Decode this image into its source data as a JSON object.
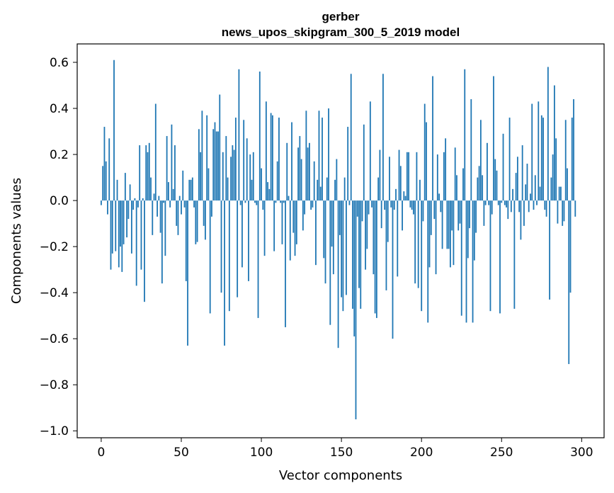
{
  "chart_data": {
    "type": "bar",
    "title": "gerber",
    "subtitle": "news_upos_skipgram_300_5_2019 model",
    "xlabel": "Vector components",
    "ylabel": "Components values",
    "xlim": [
      -15,
      314
    ],
    "ylim": [
      -1.03,
      0.68
    ],
    "xticks": [
      0,
      50,
      100,
      150,
      200,
      250,
      300
    ],
    "yticks": [
      0.6,
      0.4,
      0.2,
      0.0,
      -0.2,
      -0.4,
      -0.6,
      -0.8,
      -1.0
    ],
    "ytick_labels": [
      "0.6",
      "0.4",
      "0.2",
      "0.0",
      "−0.2",
      "−0.4",
      "−0.6",
      "−0.8",
      "−1.0"
    ],
    "bar_color": "#1f77b4",
    "grid": false,
    "values": [
      -0.02,
      0.15,
      0.32,
      0.17,
      -0.06,
      0.27,
      -0.3,
      -0.23,
      0.61,
      -0.22,
      0.09,
      -0.29,
      -0.2,
      -0.31,
      -0.19,
      0.12,
      -0.16,
      -0.08,
      0.07,
      -0.23,
      -0.04,
      0.01,
      -0.37,
      -0.03,
      0.24,
      -0.3,
      0.01,
      -0.44,
      0.24,
      0.21,
      0.25,
      0.1,
      -0.15,
      0.03,
      0.42,
      -0.07,
      0.02,
      -0.14,
      -0.36,
      -0.01,
      -0.24,
      0.28,
      0.08,
      -0.03,
      0.33,
      0.05,
      0.24,
      -0.11,
      -0.15,
      0.02,
      -0.06,
      0.13,
      -0.03,
      -0.35,
      -0.63,
      0.09,
      0.09,
      0.1,
      -0.03,
      -0.19,
      -0.18,
      0.31,
      0.21,
      0.39,
      -0.11,
      -0.17,
      0.37,
      0.14,
      -0.49,
      -0.07,
      0.31,
      0.34,
      0.3,
      0.3,
      0.46,
      -0.4,
      0.21,
      -0.63,
      0.28,
      0.1,
      -0.48,
      0.19,
      0.24,
      0.22,
      0.36,
      -0.42,
      0.57,
      -0.02,
      -0.29,
      0.35,
      -0.01,
      0.27,
      -0.35,
      0.2,
      0.09,
      0.21,
      -0.01,
      -0.02,
      -0.51,
      0.56,
      0.14,
      -0.04,
      -0.24,
      0.43,
      0.08,
      0.05,
      0.38,
      0.37,
      -0.22,
      -0.01,
      0.17,
      0.36,
      -0.01,
      -0.19,
      -0.01,
      -0.55,
      0.25,
      0.02,
      -0.26,
      0.34,
      -0.14,
      -0.24,
      -0.19,
      0.23,
      0.28,
      0.18,
      -0.13,
      -0.06,
      0.39,
      0.23,
      0.25,
      -0.04,
      -0.03,
      0.17,
      -0.28,
      0.09,
      0.39,
      0.06,
      0.36,
      -0.25,
      -0.36,
      0.1,
      0.4,
      -0.54,
      -0.2,
      -0.32,
      0.09,
      0.18,
      -0.64,
      -0.15,
      -0.42,
      -0.48,
      0.1,
      -0.41,
      0.32,
      -0.02,
      0.55,
      -0.47,
      -0.59,
      -0.95,
      -0.07,
      -0.38,
      -0.47,
      -0.09,
      0.33,
      -0.3,
      -0.21,
      -0.06,
      0.43,
      -0.03,
      -0.32,
      -0.49,
      -0.51,
      0.1,
      0.22,
      -0.12,
      0.55,
      -0.04,
      -0.39,
      -0.18,
      0.19,
      -0.03,
      -0.6,
      -0.04,
      0.05,
      -0.33,
      0.22,
      0.15,
      -0.13,
      0.04,
      0.02,
      0.21,
      0.21,
      -0.03,
      -0.04,
      -0.06,
      -0.36,
      0.21,
      -0.38,
      0.09,
      -0.48,
      -0.09,
      0.42,
      0.34,
      -0.53,
      -0.29,
      -0.15,
      0.54,
      -0.08,
      -0.32,
      0.2,
      0.03,
      -0.05,
      -0.21,
      0.21,
      0.27,
      -0.21,
      -0.21,
      -0.29,
      -0.13,
      -0.28,
      0.23,
      0.11,
      -0.13,
      -0.1,
      -0.5,
      0.14,
      0.57,
      -0.53,
      -0.25,
      -0.12,
      0.44,
      -0.53,
      -0.26,
      -0.14,
      0.1,
      0.15,
      0.35,
      0.11,
      -0.11,
      -0.02,
      0.25,
      -0.02,
      -0.48,
      -0.06,
      0.54,
      0.18,
      0.13,
      -0.02,
      -0.49,
      -0.01,
      0.29,
      -0.02,
      -0.03,
      -0.08,
      0.36,
      -0.05,
      0.05,
      -0.47,
      0.12,
      0.19,
      -0.05,
      -0.17,
      0.24,
      -0.11,
      0.07,
      0.16,
      -0.05,
      0.03,
      0.42,
      -0.04,
      0.11,
      -0.02,
      0.43,
      0.06,
      0.37,
      0.36,
      -0.04,
      -0.07,
      0.58,
      -0.43,
      0.1,
      0.2,
      0.5,
      0.27,
      -0.1,
      0.06,
      0.06,
      -0.11,
      -0.09,
      0.35,
      0.14,
      -0.71,
      -0.4,
      0.36,
      0.44,
      -0.07
    ]
  }
}
